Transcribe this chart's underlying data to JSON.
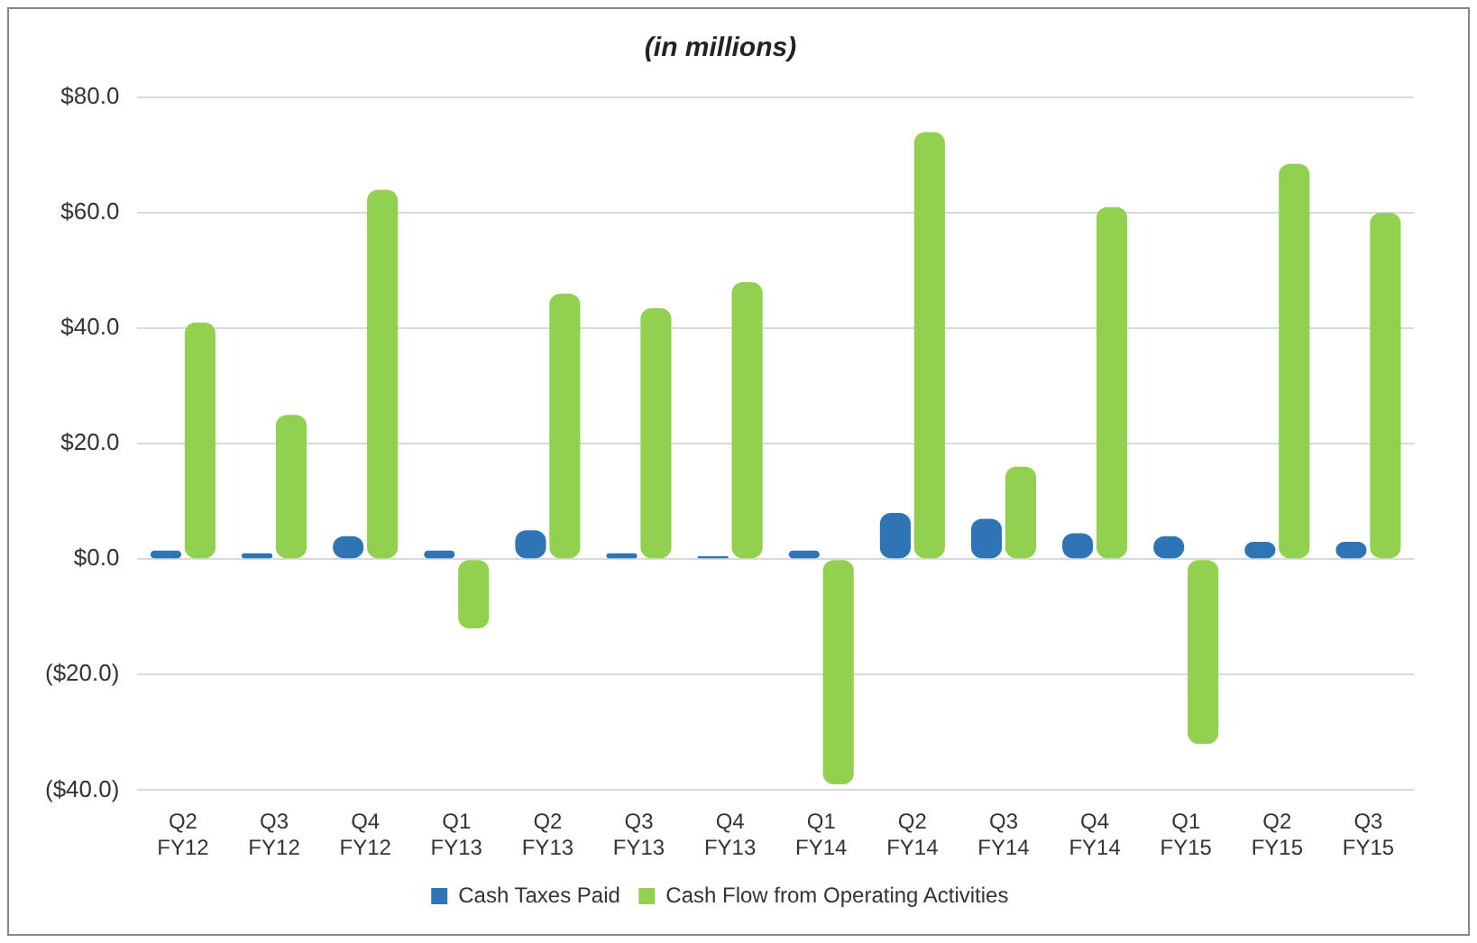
{
  "chart_data": {
    "type": "bar",
    "title": "(in millions)",
    "categories": [
      "Q2\nFY12",
      "Q3\nFY12",
      "Q4\nFY12",
      "Q1\nFY13",
      "Q2\nFY13",
      "Q3\nFY13",
      "Q4\nFY13",
      "Q1\nFY14",
      "Q2\nFY14",
      "Q3\nFY14",
      "Q4\nFY14",
      "Q1\nFY15",
      "Q2\nFY15",
      "Q3\nFY15"
    ],
    "series": [
      {
        "name": "Cash Taxes Paid",
        "color": "#2e75b6",
        "values": [
          1.5,
          1,
          4,
          1.5,
          5,
          1,
          0.5,
          1.5,
          8,
          7,
          4.5,
          4,
          3,
          3
        ]
      },
      {
        "name": "Cash Flow from Operating Activities",
        "color": "#92d050",
        "values": [
          41,
          25,
          64,
          -12,
          46,
          43.5,
          48,
          -39,
          74,
          16,
          61,
          -32,
          68.5,
          60
        ]
      }
    ],
    "ylim": [
      -40,
      80
    ],
    "yticks": [
      {
        "value": -40,
        "label": "($40.0)"
      },
      {
        "value": -20,
        "label": "($20.0)"
      },
      {
        "value": 0,
        "label": "$0.0"
      },
      {
        "value": 20,
        "label": "$20.0"
      },
      {
        "value": 40,
        "label": "$40.0"
      },
      {
        "value": 60,
        "label": "$60.0"
      },
      {
        "value": 80,
        "label": "$80.0"
      }
    ],
    "grid": "y",
    "legend": "bottom"
  }
}
